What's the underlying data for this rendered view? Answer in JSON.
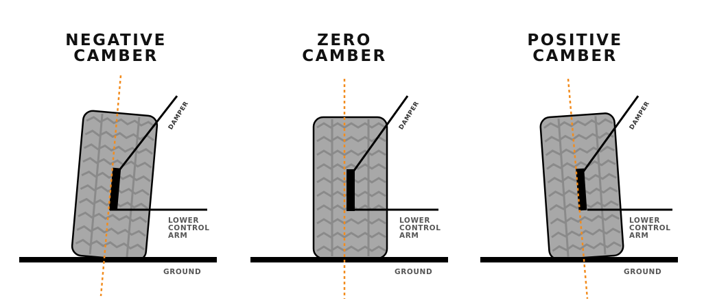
{
  "panels": [
    {
      "title_line1": "NEGATIVE",
      "title_line2": "CAMBER",
      "damper": "DAMPER",
      "arm_line1": "LOWER",
      "arm_line2": "CONTROL",
      "arm_line3": "ARM",
      "ground": "GROUND"
    },
    {
      "title_line1": "ZERO",
      "title_line2": "CAMBER",
      "damper": "DAMPER",
      "arm_line1": "LOWER",
      "arm_line2": "CONTROL",
      "arm_line3": "ARM",
      "ground": "GROUND"
    },
    {
      "title_line1": "POSITIVE",
      "title_line2": "CAMBER",
      "damper": "DAMPER",
      "arm_line1": "LOWER",
      "arm_line2": "CONTROL",
      "arm_line3": "ARM",
      "ground": "GROUND"
    }
  ],
  "colors": {
    "axis": "#F28C1E",
    "tire": "#A8A8A8",
    "tread": "#8A8A8A",
    "ink": "#000000"
  }
}
